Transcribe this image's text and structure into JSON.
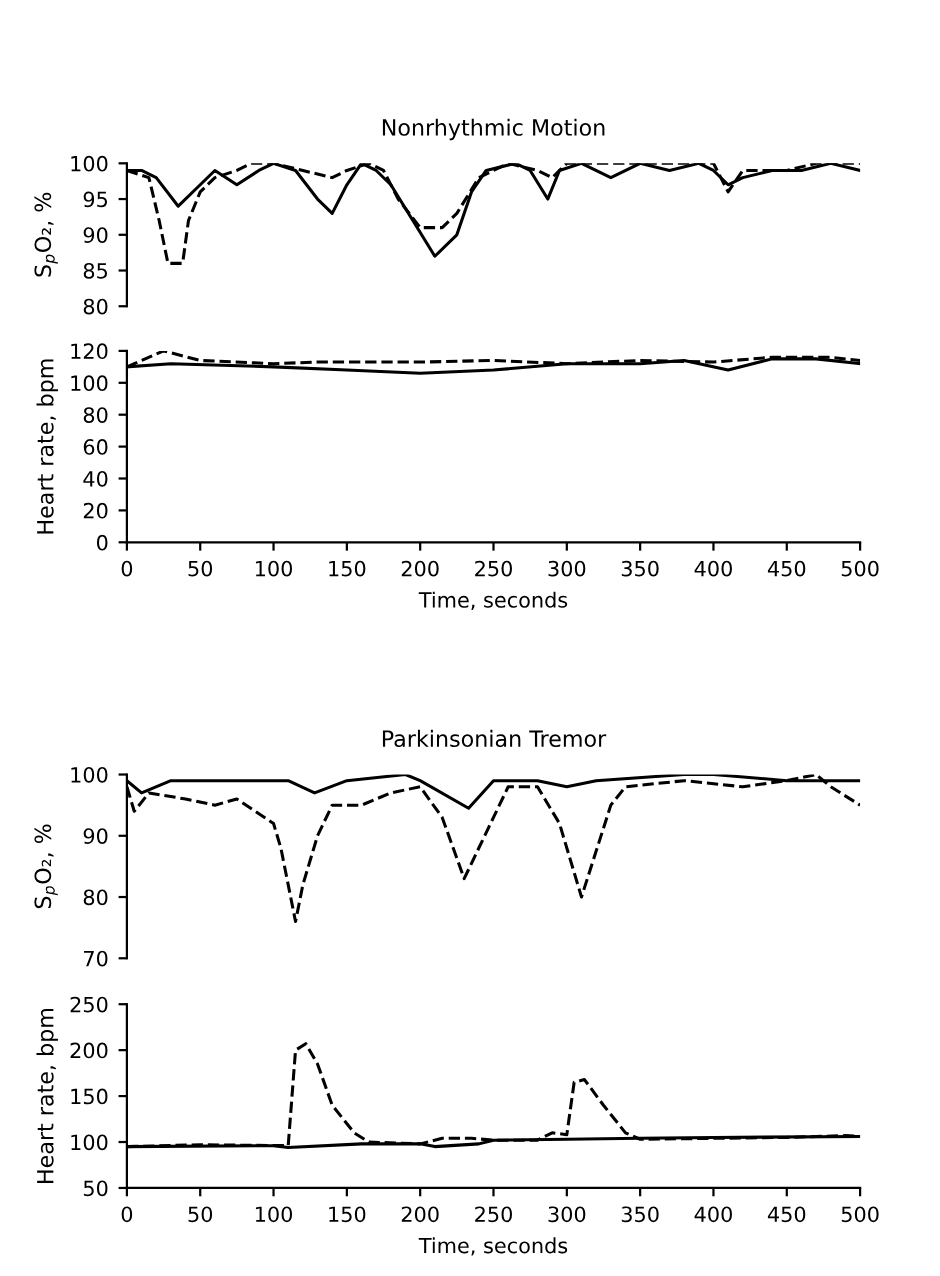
{
  "chart_data": [
    {
      "type": "line",
      "title": "Nonrhythmic Motion",
      "ylabel": "S$_{p}$O₂, %",
      "xlim": [
        0,
        500
      ],
      "ylim": [
        80,
        100
      ],
      "yticks": [
        80,
        85,
        90,
        95,
        100
      ],
      "tick_labels": "y",
      "grid": false,
      "legend": false,
      "series": [
        {
          "color": "#000000",
          "line_style": "solid",
          "x": [
            0,
            10,
            20,
            35,
            50,
            60,
            75,
            90,
            100,
            115,
            130,
            140,
            150,
            160,
            170,
            180,
            195,
            210,
            225,
            235,
            245,
            265,
            275,
            287,
            295,
            310,
            330,
            350,
            370,
            390,
            400,
            410,
            420,
            440,
            460,
            480,
            500
          ],
          "values": [
            99,
            99,
            98,
            94,
            97,
            99,
            97,
            99,
            100,
            99,
            95,
            93,
            97,
            100,
            99,
            97,
            92,
            87,
            90,
            96,
            99,
            100,
            99,
            95,
            99,
            100,
            98,
            100,
            99,
            100,
            99,
            97,
            98,
            99,
            99,
            100,
            99
          ]
        },
        {
          "color": "#000000",
          "line_style": "dashed",
          "x": [
            0,
            15,
            22,
            28,
            38,
            42,
            50,
            60,
            75,
            85,
            100,
            120,
            140,
            150,
            165,
            175,
            185,
            200,
            215,
            225,
            240,
            260,
            280,
            290,
            300,
            400,
            410,
            420,
            450,
            470,
            500
          ],
          "values": [
            99,
            98,
            92,
            86,
            86,
            92,
            96,
            98,
            99,
            100,
            100,
            99,
            98,
            99,
            100,
            99,
            95,
            91,
            91,
            93,
            98,
            100,
            99,
            98,
            100,
            100,
            96,
            99,
            99,
            100,
            100
          ]
        }
      ]
    },
    {
      "type": "line",
      "xlabel": "Time, seconds",
      "ylabel": "Heart rate, bpm",
      "xlim": [
        0,
        500
      ],
      "xticks": [
        0,
        50,
        100,
        150,
        200,
        250,
        300,
        350,
        400,
        450,
        500
      ],
      "ylim": [
        0,
        120
      ],
      "yticks": [
        0,
        20,
        40,
        60,
        80,
        100,
        120
      ],
      "grid": false,
      "legend": false,
      "series": [
        {
          "color": "#000000",
          "line_style": "solid",
          "x": [
            0,
            30,
            100,
            150,
            200,
            250,
            300,
            350,
            380,
            410,
            440,
            470,
            500
          ],
          "values": [
            110,
            112,
            110,
            108,
            106,
            108,
            112,
            112,
            114,
            108,
            115,
            115,
            112
          ]
        },
        {
          "color": "#000000",
          "line_style": "dashed",
          "x": [
            0,
            25,
            50,
            100,
            130,
            200,
            250,
            300,
            350,
            400,
            440,
            480,
            500
          ],
          "values": [
            110,
            120,
            114,
            112,
            113,
            113,
            114,
            112,
            114,
            113,
            116,
            116,
            114
          ]
        }
      ]
    },
    {
      "type": "line",
      "title": "Parkinsonian Tremor",
      "ylabel": "S$_{p}$O₂, %",
      "xlim": [
        0,
        500
      ],
      "ylim": [
        70,
        100
      ],
      "yticks": [
        70,
        80,
        90,
        100
      ],
      "tick_labels": "y",
      "grid": false,
      "legend": false,
      "series": [
        {
          "color": "#000000",
          "line_style": "solid",
          "x": [
            0,
            10,
            30,
            100,
            110,
            128,
            150,
            190,
            200,
            233,
            250,
            280,
            300,
            320,
            380,
            400,
            450,
            480,
            500
          ],
          "values": [
            99,
            97,
            99,
            99,
            99,
            97,
            99,
            100,
            99,
            94.5,
            99,
            99,
            98,
            99,
            100,
            100,
            99,
            99,
            99
          ]
        },
        {
          "color": "#000000",
          "line_style": "dashed",
          "x": [
            0,
            5,
            15,
            40,
            60,
            75,
            100,
            105,
            115,
            120,
            130,
            140,
            160,
            180,
            200,
            215,
            230,
            240,
            250,
            260,
            280,
            295,
            310,
            318,
            330,
            340,
            380,
            420,
            450,
            470,
            480,
            500
          ],
          "values": [
            98,
            94,
            97,
            96,
            95,
            96,
            92,
            88,
            76,
            82,
            90,
            95,
            95,
            97,
            98,
            93,
            83,
            88,
            93,
            98,
            98,
            92,
            80,
            86,
            95,
            98,
            99,
            98,
            99,
            100,
            98,
            95
          ]
        }
      ]
    },
    {
      "type": "line",
      "xlabel": "Time, seconds",
      "ylabel": "Heart rate, bpm",
      "xlim": [
        0,
        500
      ],
      "xticks": [
        0,
        50,
        100,
        150,
        200,
        250,
        300,
        350,
        400,
        450,
        500
      ],
      "ylim": [
        50,
        250
      ],
      "yticks": [
        50,
        100,
        150,
        200,
        250
      ],
      "grid": false,
      "legend": false,
      "series": [
        {
          "color": "#000000",
          "line_style": "solid",
          "x": [
            0,
            100,
            110,
            160,
            200,
            210,
            240,
            250,
            300,
            350,
            400,
            500
          ],
          "values": [
            95,
            96,
            94,
            98,
            98,
            95,
            98,
            102,
            103,
            104,
            105,
            106
          ]
        },
        {
          "color": "#000000",
          "line_style": "dashed",
          "x": [
            0,
            50,
            110,
            115,
            122,
            130,
            140,
            155,
            165,
            200,
            215,
            235,
            250,
            280,
            290,
            300,
            305,
            312,
            325,
            340,
            350,
            400,
            450,
            490,
            500
          ],
          "values": [
            95,
            97,
            96,
            200,
            207,
            185,
            140,
            110,
            100,
            98,
            104,
            104,
            102,
            102,
            110,
            108,
            165,
            168,
            140,
            110,
            103,
            104,
            105,
            107,
            106
          ]
        }
      ]
    }
  ]
}
